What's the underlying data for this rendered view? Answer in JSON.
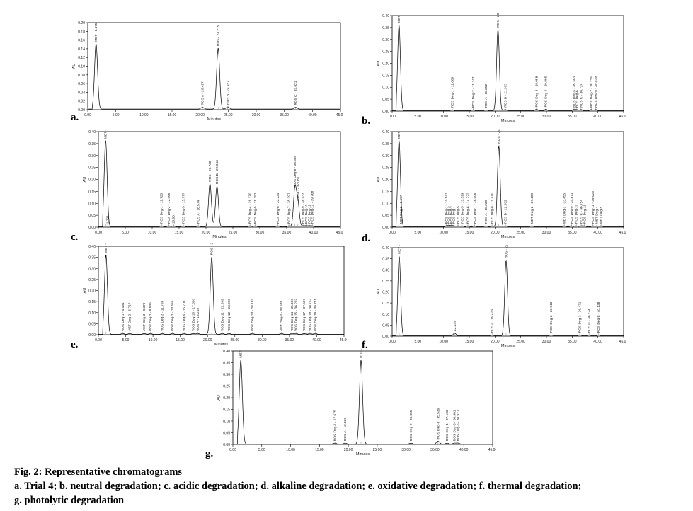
{
  "caption": {
    "title": "Fig. 2: Representative chromatograms",
    "line1": "a. Trial 4; b. neutral degradation; c. acidic degradation; d. alkaline degradation; e. oxidative degradation; f. thermal degradation;",
    "line2": "g. photolytic degradation"
  },
  "chart_data": [
    {
      "panel": "a.",
      "type": "line",
      "xlabel": "Minutes",
      "ylabel": "AU",
      "xlim": [
        0,
        45
      ],
      "ylim": [
        0,
        0.2
      ],
      "xticks": [
        "0.00",
        "5.00",
        "10.00",
        "15.00",
        "20.00",
        "25.00",
        "30.00",
        "35.00",
        "40.00",
        "45.00"
      ],
      "yticks": [
        "0.00",
        "0.02",
        "0.04",
        "0.06",
        "0.08",
        "0.10",
        "0.12",
        "0.14",
        "0.16",
        "0.18",
        "0.20"
      ],
      "peaks": [
        {
          "t": 1.475,
          "h": 0.15,
          "label": "MET - 1.475"
        },
        {
          "t": 20.427,
          "h": 0.004,
          "label": "ROS A - 20.427"
        },
        {
          "t": 23.215,
          "h": 0.14,
          "label": "ROS - 23.215"
        },
        {
          "t": 24.927,
          "h": 0.005,
          "label": "ROS B - 24.927"
        },
        {
          "t": 37.021,
          "h": 0.004,
          "label": "ROS C - 37.021"
        }
      ]
    },
    {
      "panel": "b.",
      "type": "line",
      "xlabel": "Minutes",
      "ylabel": "AU",
      "xlim": [
        0,
        45
      ],
      "ylim": [
        0,
        0.4
      ],
      "xticks": [
        "0.00",
        "5.00",
        "10.00",
        "15.00",
        "20.00",
        "25.00",
        "30.00",
        "35.00",
        "40.00",
        "45.00"
      ],
      "yticks": [
        "0.00",
        "0.05",
        "0.10",
        "0.15",
        "0.20",
        "0.25",
        "0.30",
        "0.35",
        "0.40"
      ],
      "peaks": [
        {
          "t": 1.334,
          "h": 0.36,
          "label": "MET - 1.334"
        },
        {
          "t": 11.669,
          "h": 0.004,
          "label": "ROS Deg-1 - 11.669"
        },
        {
          "t": 15.747,
          "h": 0.004,
          "label": "ROS Deg-2 - 15.747"
        },
        {
          "t": 18.252,
          "h": 0.004,
          "label": "ROS A - 18.252"
        },
        {
          "t": 20.574,
          "h": 0.34,
          "label": "ROS - 20.574"
        },
        {
          "t": 21.995,
          "h": 0.005,
          "label": "ROS B - 21.995"
        },
        {
          "t": 28.058,
          "h": 0.006,
          "label": "ROS Deg-3 - 28.058"
        },
        {
          "t": 29.895,
          "h": 0.006,
          "label": "ROS Deg-4 - 29.895"
        },
        {
          "t": 35.363,
          "h": 0.005,
          "label": "ROS Deg-5 - 35.363"
        },
        {
          "t": 35.9,
          "h": 0.004,
          "label": "ROS Deg-6"
        },
        {
          "t": 36.724,
          "h": 0.005,
          "label": "ROS C - 36.724"
        },
        {
          "t": 38.725,
          "h": 0.005,
          "label": "ROS Deg-7 - 38.725"
        },
        {
          "t": 39.579,
          "h": 0.005,
          "label": "ROS Deg-8 - 39.579"
        }
      ]
    },
    {
      "panel": "c.",
      "type": "line",
      "xlabel": "Minutes",
      "ylabel": "AU",
      "xlim": [
        0,
        45
      ],
      "ylim": [
        0,
        0.4
      ],
      "xticks": [
        "0.00",
        "5.00",
        "10.00",
        "15.00",
        "20.00",
        "25.00",
        "30.00",
        "35.00",
        "40.00",
        "45.00"
      ],
      "yticks": [
        "0.00",
        "0.05",
        "0.10",
        "0.15",
        "0.20",
        "0.25",
        "0.30",
        "0.35",
        "0.40"
      ],
      "peaks": [
        {
          "t": 1.344,
          "h": 0.36,
          "label": "MET - 1.344"
        },
        {
          "t": 1.721,
          "h": 0.004,
          "label": "1.721"
        },
        {
          "t": 11.723,
          "h": 0.004,
          "label": "ROS Deg-1 - 11.723"
        },
        {
          "t": 13.066,
          "h": 0.004,
          "label": "ROS Deg-2 - 13.066"
        },
        {
          "t": 13.98,
          "h": 0.004,
          "label": "13.98"
        },
        {
          "t": 15.777,
          "h": 0.004,
          "label": "ROS Deg-3 - 15.777"
        },
        {
          "t": 18.574,
          "h": 0.004,
          "label": "ROS A - 18.574"
        },
        {
          "t": 20.738,
          "h": 0.18,
          "label": "ROS - 20.738"
        },
        {
          "t": 22.043,
          "h": 0.17,
          "label": "ROS B - 22.043"
        },
        {
          "t": 28.17,
          "h": 0.004,
          "label": "ROS Deg-4 - 28.170"
        },
        {
          "t": 29.157,
          "h": 0.004,
          "label": "ROS Deg-5 - 29.157"
        },
        {
          "t": 33.334,
          "h": 0.004,
          "label": "ROS Deg-6 - 33.334"
        },
        {
          "t": 35.397,
          "h": 0.004,
          "label": "ROS Deg-7 - 35.397"
        },
        {
          "t": 36.535,
          "h": 0.16,
          "label": "ROS Deg-8 - 36.535"
        },
        {
          "t": 37.081,
          "h": 0.1,
          "label": "ROS C - 37.081"
        },
        {
          "t": 38.033,
          "h": 0.004,
          "label": "ROS Deg-9 - 38.033"
        },
        {
          "t": 38.6,
          "h": 0.004,
          "label": "ROS Deg-10"
        },
        {
          "t": 39.2,
          "h": 0.004,
          "label": "ROS Deg-11"
        },
        {
          "t": 39.768,
          "h": 0.004,
          "label": "ROS Deg-12 - 39.768"
        }
      ]
    },
    {
      "panel": "d.",
      "type": "line",
      "xlabel": "Minutes",
      "ylabel": "AU",
      "xlim": [
        0,
        45
      ],
      "ylim": [
        0,
        0.4
      ],
      "xticks": [
        "0.00",
        "5.00",
        "10.00",
        "15.00",
        "20.00",
        "25.00",
        "30.00",
        "35.00",
        "40.00",
        "45.00"
      ],
      "yticks": [
        "0.00",
        "0.05",
        "0.10",
        "0.15",
        "0.20",
        "0.25",
        "0.30",
        "0.35",
        "0.40"
      ],
      "peaks": [
        {
          "t": 1.34,
          "h": 0.36,
          "label": "MET - 1.340"
        },
        {
          "t": 1.697,
          "h": 0.004,
          "label": "MET Deg-1 - 1.697"
        },
        {
          "t": 10.541,
          "h": 0.004,
          "label": "ROS Deg-1 - 10.541"
        },
        {
          "t": 11.0,
          "h": 0.004,
          "label": "ROS Deg-2"
        },
        {
          "t": 11.5,
          "h": 0.004,
          "label": "ROS Deg-3"
        },
        {
          "t": 12.0,
          "h": 0.004,
          "label": "ROS Deg-4"
        },
        {
          "t": 12.8,
          "h": 0.004,
          "label": "ROS Deg-5"
        },
        {
          "t": 13.599,
          "h": 0.004,
          "label": "ROS Deg-5 - 13.599"
        },
        {
          "t": 14.722,
          "h": 0.004,
          "label": "ROS Deg-6 - 14.722"
        },
        {
          "t": 16.006,
          "h": 0.004,
          "label": "ROS Deg-7 - 16.006"
        },
        {
          "t": 18.23,
          "h": 0.004,
          "label": "ROS A - 18.230"
        },
        {
          "t": 19.41,
          "h": 0.004,
          "label": "ROS Deg-8 - 19.410"
        },
        {
          "t": 20.74,
          "h": 0.34,
          "label": "ROS - 20.740"
        },
        {
          "t": 22.032,
          "h": 0.004,
          "label": "ROS B - 22.032"
        },
        {
          "t": 27.16,
          "h": 0.004,
          "label": "MET Deg-2 - 27.160"
        },
        {
          "t": 33.455,
          "h": 0.004,
          "label": "MET Deg-3 - 33.455"
        },
        {
          "t": 34.871,
          "h": 0.004,
          "label": "ROS Deg-9 - 34.871"
        },
        {
          "t": 35.8,
          "h": 0.004,
          "label": "ROS Deg-10"
        },
        {
          "t": 36.754,
          "h": 0.004,
          "label": "ROS C - 36.754"
        },
        {
          "t": 37.4,
          "h": 0.004,
          "label": "ROS Deg-11"
        },
        {
          "t": 39.023,
          "h": 0.004,
          "label": "ROS Deg-11 - 39.023"
        },
        {
          "t": 39.8,
          "h": 0.004,
          "label": "MET Deg-4"
        },
        {
          "t": 40.6,
          "h": 0.004,
          "label": "MET Deg-5"
        }
      ]
    },
    {
      "panel": "e.",
      "type": "line",
      "xlabel": "Minutes",
      "ylabel": "AU",
      "xlim": [
        0,
        45
      ],
      "ylim": [
        0,
        0.4
      ],
      "xticks": [
        "0.00",
        "5.00",
        "10.00",
        "15.00",
        "20.00",
        "25.00",
        "30.00",
        "35.00",
        "40.00",
        "45.00"
      ],
      "yticks": [
        "0.00",
        "0.05",
        "0.10",
        "0.15",
        "0.20",
        "0.25",
        "0.30",
        "0.35",
        "0.40"
      ],
      "peaks": [
        {
          "t": 1.384,
          "h": 0.36,
          "label": "MET - 1.384"
        },
        {
          "t": 4.451,
          "h": 0.004,
          "label": "ROS Deg-1 - 4.451"
        },
        {
          "t": 5.717,
          "h": 0.004,
          "label": "MET Deg-2 - 5.717"
        },
        {
          "t": 8.379,
          "h": 0.004,
          "label": "MET Deg-3 - 8.379"
        },
        {
          "t": 9.535,
          "h": 0.004,
          "label": "ROS Deg-2 - 9.535"
        },
        {
          "t": 11.703,
          "h": 0.004,
          "label": "ROS Deg-3 - 11.703"
        },
        {
          "t": 13.555,
          "h": 0.004,
          "label": "ROS Deg-7 - 13.555"
        },
        {
          "t": 15.703,
          "h": 0.004,
          "label": "ROS Deg-9 - 15.703"
        },
        {
          "t": 17.36,
          "h": 0.004,
          "label": "ROS Deg-10 - 17.360"
        },
        {
          "t": 18.219,
          "h": 0.004,
          "label": "ROS A - 18.219"
        },
        {
          "t": 20.76,
          "h": 0.35,
          "label": "ROS - 20.760"
        },
        {
          "t": 22.699,
          "h": 0.004,
          "label": "ROS Deg-11 - 22.699"
        },
        {
          "t": 23.926,
          "h": 0.004,
          "label": "ROS Deg-12 - 23.926"
        },
        {
          "t": 28.187,
          "h": 0.004,
          "label": "ROS Deg-13 - 28.187"
        },
        {
          "t": 33.548,
          "h": 0.004,
          "label": "MET Deg-4 - 33.548"
        },
        {
          "t": 35.49,
          "h": 0.004,
          "label": "ROS Deg-14 - 35.490"
        },
        {
          "t": 36.207,
          "h": 0.004,
          "label": "ROS Deg-15 - 36.207"
        },
        {
          "t": 37.697,
          "h": 0.004,
          "label": "ROS Deg-17 - 37.697"
        },
        {
          "t": 38.762,
          "h": 0.004,
          "label": "ROS Deg-18 - 38.762"
        },
        {
          "t": 39.741,
          "h": 0.004,
          "label": "ROS Deg-19 - 39.741"
        }
      ]
    },
    {
      "panel": "f.",
      "type": "line",
      "xlabel": "Minutes",
      "ylabel": "AU",
      "xlim": [
        0,
        45
      ],
      "ylim": [
        0,
        0.4
      ],
      "xticks": [
        "0.00",
        "5.00",
        "10.00",
        "15.00",
        "20.00",
        "25.00",
        "30.00",
        "35.00",
        "40.00",
        "45.00"
      ],
      "yticks": [
        "0.00",
        "0.05",
        "0.10",
        "0.15",
        "0.20",
        "0.25",
        "0.30",
        "0.35",
        "0.40"
      ],
      "peaks": [
        {
          "t": 1.371,
          "h": 0.36,
          "label": "MET - 1.371"
        },
        {
          "t": 12.149,
          "h": 0.012,
          "label": "12.149"
        },
        {
          "t": 19.426,
          "h": 0.004,
          "label": "ROS A - 19.426"
        },
        {
          "t": 22.153,
          "h": 0.34,
          "label": "ROS - 22.153"
        },
        {
          "t": 30.913,
          "h": 0.004,
          "label": "ROS Deg-2 - 30.913"
        },
        {
          "t": 36.471,
          "h": 0.004,
          "label": "ROS Deg-3 - 36.471"
        },
        {
          "t": 38.274,
          "h": 0.004,
          "label": "ROS C - 38.274"
        },
        {
          "t": 40.138,
          "h": 0.004,
          "label": "ROS Deg-8 - 40.138"
        }
      ]
    },
    {
      "panel": "g.",
      "type": "line",
      "xlabel": "Minutes",
      "ylabel": "AU",
      "xlim": [
        0,
        45
      ],
      "ylim": [
        0,
        0.4
      ],
      "xticks": [
        "0.00",
        "5.00",
        "10.00",
        "15.00",
        "20.00",
        "25.00",
        "30.00",
        "35.00",
        "40.00",
        "45.00"
      ],
      "yticks": [
        "0.00",
        "0.05",
        "0.10",
        "0.15",
        "0.20",
        "0.25",
        "0.30",
        "0.35",
        "0.40"
      ],
      "peaks": [
        {
          "t": 1.373,
          "h": 0.36,
          "label": "MET - 1.373"
        },
        {
          "t": 17.675,
          "h": 0.004,
          "label": "ROS Deg-1 - 17.675"
        },
        {
          "t": 19.429,
          "h": 0.004,
          "label": "ROS A - 19.429"
        },
        {
          "t": 22.198,
          "h": 0.36,
          "label": "ROS - 22.198"
        },
        {
          "t": 30.855,
          "h": 0.004,
          "label": "ROS Deg-2 - 30.855"
        },
        {
          "t": 35.536,
          "h": 0.012,
          "label": "ROS Deg-3 - 35.536"
        },
        {
          "t": 37.103,
          "h": 0.004,
          "label": "ROS Deg-4 - 37.103"
        },
        {
          "t": 38.361,
          "h": 0.004,
          "label": "ROS Deg-5 - 38.361"
        },
        {
          "t": 38.977,
          "h": 0.004,
          "label": "ROS Deg-6 - 38.977"
        }
      ]
    }
  ]
}
